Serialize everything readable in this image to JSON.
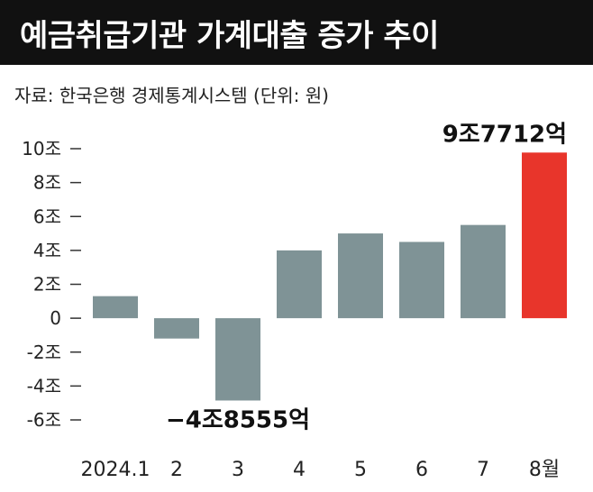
{
  "header": {
    "title": "예금취급기관 가계대출 증가 추이",
    "source": "자료: 한국은행 경제통계시스템 (단위: 원)"
  },
  "colors": {
    "bar": "#7f9396",
    "highlight": "#e8352b",
    "title_bg": "#111111"
  },
  "chart_data": {
    "type": "bar",
    "title": "예금취급기관 가계대출 증가 추이",
    "categories": [
      "2024.1",
      "2",
      "3",
      "4",
      "5",
      "6",
      "7",
      "8월"
    ],
    "values": [
      1.3,
      -1.2,
      -4.8555,
      4.0,
      5.0,
      4.5,
      5.5,
      9.7712
    ],
    "highlight_index": 7,
    "ylim": [
      -6,
      10
    ],
    "yticks": [
      10,
      8,
      6,
      4,
      2,
      0,
      -2,
      -4,
      -6
    ],
    "ytick_labels": [
      "10조",
      "8조",
      "6조",
      "4조",
      "2조",
      "0",
      "-2조",
      "-4조",
      "-6조"
    ],
    "annotations": [
      {
        "index": 7,
        "text": "9조7712억"
      },
      {
        "index": 2,
        "text": "−4조8555억"
      }
    ],
    "grid": false,
    "xlabel": "",
    "ylabel": ""
  }
}
